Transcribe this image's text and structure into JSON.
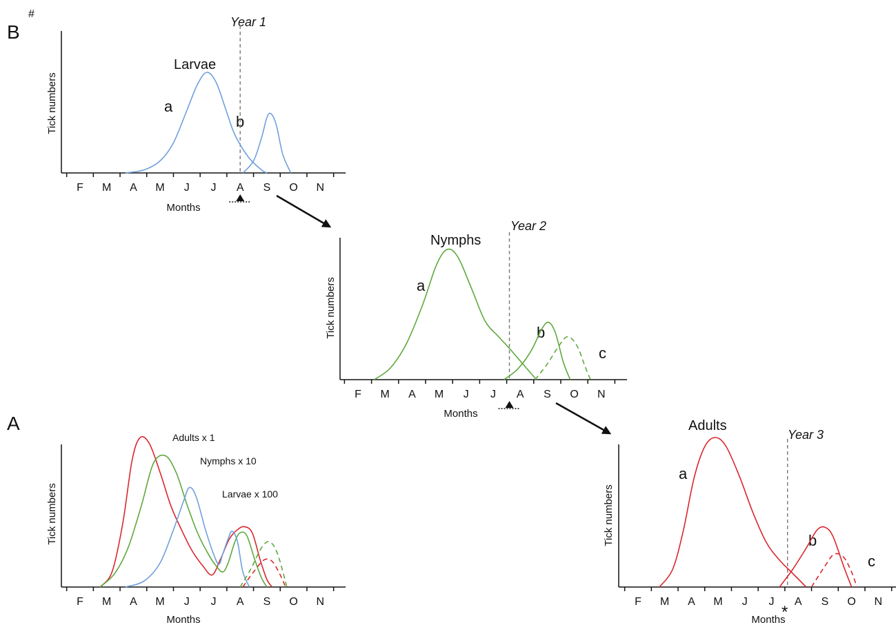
{
  "colors": {
    "larvae": "#6f9fdd",
    "nymphs": "#5ea83c",
    "adults": "#d9262d",
    "axis": "#111111",
    "dashed_line": "#777777"
  },
  "months": [
    "F",
    "M",
    "A",
    "M",
    "J",
    "J",
    "A",
    "S",
    "O",
    "N"
  ],
  "panel_B_label": "B",
  "panel_B_note": "#",
  "panel_A_label": "A",
  "asterisk": "*",
  "chart_data": [
    {
      "panel": "B",
      "type": "line",
      "title": "Larvae",
      "year_label": "Year 1",
      "xlabel": "Months",
      "ylabel": "Tick numbers",
      "series": [
        {
          "name": "a",
          "points": [
            [
              1.7,
              0
            ],
            [
              2.4,
              0.03
            ],
            [
              3.0,
              0.12
            ],
            [
              3.5,
              0.3
            ],
            [
              4.0,
              0.62
            ],
            [
              4.4,
              0.88
            ],
            [
              4.75,
              1.0
            ],
            [
              5.1,
              0.9
            ],
            [
              5.5,
              0.6
            ],
            [
              5.8,
              0.38
            ],
            [
              6.3,
              0.16
            ],
            [
              6.8,
              0.03
            ],
            [
              7.0,
              0
            ]
          ]
        },
        {
          "name": "b",
          "points": [
            [
              6.1,
              0
            ],
            [
              6.5,
              0.12
            ],
            [
              6.8,
              0.35
            ],
            [
              7.0,
              0.55
            ],
            [
              7.15,
              0.59
            ],
            [
              7.35,
              0.48
            ],
            [
              7.6,
              0.18
            ],
            [
              7.9,
              0
            ]
          ]
        }
      ],
      "curve_labels": [
        "a",
        "b"
      ],
      "marker": "triangle"
    },
    {
      "panel": "B",
      "type": "line",
      "title": "Nymphs",
      "year_label": "Year 2",
      "xlabel": "Months",
      "ylabel": "Tick numbers",
      "series": [
        {
          "name": "a",
          "points": [
            [
              0.6,
              0
            ],
            [
              1.2,
              0.09
            ],
            [
              1.8,
              0.28
            ],
            [
              2.4,
              0.58
            ],
            [
              2.9,
              0.88
            ],
            [
              3.3,
              1.0
            ],
            [
              3.7,
              0.94
            ],
            [
              4.2,
              0.7
            ],
            [
              4.7,
              0.45
            ],
            [
              5.2,
              0.33
            ],
            [
              5.6,
              0.24
            ],
            [
              6.1,
              0.12
            ],
            [
              6.6,
              0
            ]
          ]
        },
        {
          "name": "b",
          "points": [
            [
              5.4,
              0
            ],
            [
              5.9,
              0.08
            ],
            [
              6.4,
              0.22
            ],
            [
              6.8,
              0.39
            ],
            [
              7.05,
              0.44
            ],
            [
              7.3,
              0.36
            ],
            [
              7.6,
              0.13
            ],
            [
              7.85,
              0
            ]
          ]
        },
        {
          "name": "c",
          "dashed": true,
          "points": [
            [
              6.55,
              0
            ],
            [
              7.0,
              0.12
            ],
            [
              7.4,
              0.25
            ],
            [
              7.75,
              0.33
            ],
            [
              8.1,
              0.26
            ],
            [
              8.4,
              0.1
            ],
            [
              8.6,
              0
            ]
          ]
        }
      ],
      "curve_labels": [
        "a",
        "b",
        "c"
      ],
      "marker": "triangle"
    },
    {
      "panel": "B",
      "type": "line",
      "title": "Adults",
      "year_label": "Year 3",
      "xlabel": "Months",
      "ylabel": "Tick numbers",
      "series": [
        {
          "name": "a",
          "points": [
            [
              0.8,
              0
            ],
            [
              1.3,
              0.12
            ],
            [
              1.7,
              0.38
            ],
            [
              2.1,
              0.73
            ],
            [
              2.5,
              0.94
            ],
            [
              2.9,
              1.0
            ],
            [
              3.3,
              0.94
            ],
            [
              3.8,
              0.74
            ],
            [
              4.3,
              0.5
            ],
            [
              4.8,
              0.3
            ],
            [
              5.3,
              0.18
            ],
            [
              5.8,
              0.09
            ],
            [
              6.3,
              0
            ]
          ]
        },
        {
          "name": "b",
          "points": [
            [
              5.3,
              0
            ],
            [
              5.8,
              0.12
            ],
            [
              6.3,
              0.26
            ],
            [
              6.7,
              0.38
            ],
            [
              7.0,
              0.4
            ],
            [
              7.3,
              0.34
            ],
            [
              7.7,
              0.14
            ],
            [
              8.0,
              0
            ]
          ]
        },
        {
          "name": "c",
          "dashed": true,
          "points": [
            [
              6.5,
              0
            ],
            [
              7.0,
              0.14
            ],
            [
              7.35,
              0.22
            ],
            [
              7.7,
              0.2
            ],
            [
              8.0,
              0.1
            ],
            [
              8.2,
              0
            ]
          ]
        }
      ],
      "curve_labels": [
        "a",
        "b",
        "c"
      ]
    },
    {
      "panel": "A",
      "type": "line",
      "xlabel": "Months",
      "ylabel": "Tick numbers",
      "series": [
        {
          "name": "Adults x 1",
          "color": "adults",
          "points": [
            [
              0.75,
              0
            ],
            [
              1.2,
              0.1
            ],
            [
              1.6,
              0.42
            ],
            [
              1.95,
              0.84
            ],
            [
              2.25,
              0.99
            ],
            [
              2.6,
              0.95
            ],
            [
              3.0,
              0.76
            ],
            [
              3.4,
              0.54
            ],
            [
              3.8,
              0.38
            ],
            [
              4.2,
              0.24
            ],
            [
              4.6,
              0.14
            ],
            [
              4.95,
              0.08
            ],
            [
              5.25,
              0.18
            ],
            [
              5.6,
              0.32
            ],
            [
              5.9,
              0.38
            ],
            [
              6.15,
              0.4
            ],
            [
              6.45,
              0.36
            ],
            [
              6.75,
              0.18
            ],
            [
              7.0,
              0.05
            ],
            [
              7.2,
              0
            ]
          ]
        },
        {
          "name": "Nymphs x 10",
          "color": "nymphs",
          "points": [
            [
              0.75,
              0
            ],
            [
              1.3,
              0.09
            ],
            [
              1.8,
              0.26
            ],
            [
              2.3,
              0.54
            ],
            [
              2.75,
              0.82
            ],
            [
              3.2,
              0.87
            ],
            [
              3.6,
              0.76
            ],
            [
              4.0,
              0.55
            ],
            [
              4.4,
              0.36
            ],
            [
              4.8,
              0.22
            ],
            [
              5.1,
              0.14
            ],
            [
              5.35,
              0.1
            ],
            [
              5.55,
              0.16
            ],
            [
              5.8,
              0.3
            ],
            [
              6.0,
              0.36
            ],
            [
              6.25,
              0.34
            ],
            [
              6.55,
              0.18
            ],
            [
              6.8,
              0.06
            ],
            [
              7.0,
              0
            ]
          ]
        },
        {
          "name": "Larvae x 100",
          "color": "larvae",
          "points": [
            [
              1.7,
              0
            ],
            [
              2.4,
              0.04
            ],
            [
              3.0,
              0.16
            ],
            [
              3.5,
              0.38
            ],
            [
              3.9,
              0.58
            ],
            [
              4.1,
              0.66
            ],
            [
              4.35,
              0.6
            ],
            [
              4.7,
              0.38
            ],
            [
              5.0,
              0.22
            ],
            [
              5.2,
              0.15
            ],
            [
              5.35,
              0.22
            ],
            [
              5.55,
              0.32
            ],
            [
              5.7,
              0.37
            ],
            [
              5.9,
              0.3
            ],
            [
              6.1,
              0.1
            ],
            [
              6.35,
              0
            ]
          ]
        },
        {
          "name": "",
          "color": "adults",
          "dashed": true,
          "points": [
            [
              6.1,
              0
            ],
            [
              6.5,
              0.1
            ],
            [
              6.9,
              0.18
            ],
            [
              7.2,
              0.17
            ],
            [
              7.5,
              0.08
            ],
            [
              7.7,
              0
            ]
          ]
        },
        {
          "name": "",
          "color": "nymphs",
          "dashed": true,
          "points": [
            [
              6.0,
              0
            ],
            [
              6.4,
              0.12
            ],
            [
              6.8,
              0.26
            ],
            [
              7.1,
              0.3
            ],
            [
              7.4,
              0.22
            ],
            [
              7.75,
              0
            ]
          ]
        }
      ]
    }
  ]
}
